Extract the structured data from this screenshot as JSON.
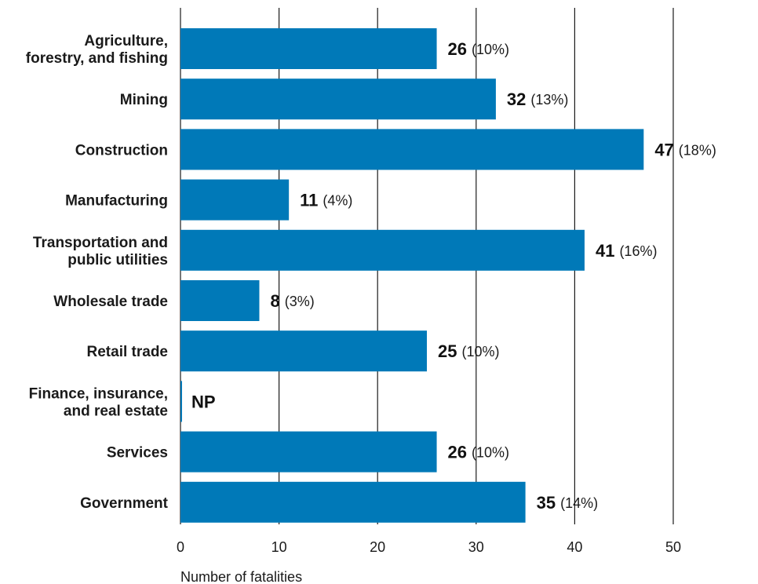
{
  "chart_data": {
    "type": "bar",
    "orientation": "horizontal",
    "title": "",
    "xlabel": "Number of fatalities",
    "ylabel": "",
    "xlim": [
      0,
      50
    ],
    "xticks": [
      "0",
      "10",
      "20",
      "30",
      "40",
      "50"
    ],
    "grid": true,
    "bar_color": "#0079B8",
    "categories": [
      [
        "Agriculture,",
        "forestry, and fishing"
      ],
      [
        "Mining"
      ],
      [
        "Construction"
      ],
      [
        "Manufacturing"
      ],
      [
        "Transportation and",
        "public utilities"
      ],
      [
        "Wholesale trade"
      ],
      [
        "Retail trade"
      ],
      [
        "Finance, insurance,",
        "and real estate"
      ],
      [
        "Services"
      ],
      [
        "Government"
      ]
    ],
    "values": [
      26,
      32,
      47,
      11,
      41,
      8,
      25,
      null,
      26,
      35
    ],
    "value_labels": [
      "26",
      "32",
      "47",
      "11",
      "41",
      "8",
      "25",
      "NP",
      "26",
      "35"
    ],
    "percent_labels": [
      "(10%)",
      "(13%)",
      "(18%)",
      "(4%)",
      "(16%)",
      "(3%)",
      "(10%)",
      "",
      "(10%)",
      "(14%)"
    ]
  }
}
